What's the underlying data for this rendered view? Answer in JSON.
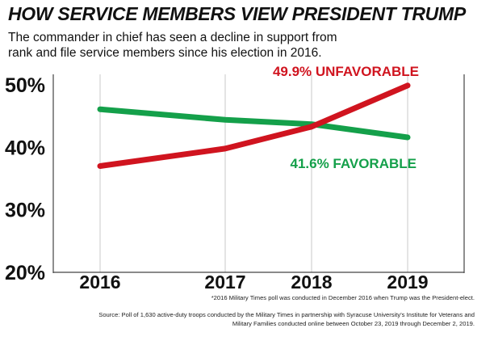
{
  "header": {
    "title": "HOW SERVICE MEMBERS VIEW PRESIDENT TRUMP",
    "subtitle": "The commander in chief has seen a decline in support from rank and file service members since his election in 2016."
  },
  "chart_data": {
    "type": "line",
    "categories": [
      "2016",
      "2017",
      "2018",
      "2019"
    ],
    "y_ticks": [
      "50%",
      "40%",
      "30%",
      "20%"
    ],
    "ylim": [
      20,
      50
    ],
    "grid": "vertical",
    "series": [
      {
        "name": "UNFAVORABLE",
        "label": "49.9% UNFAVORABLE",
        "color": "#d0141f",
        "values": [
          37.0,
          39.8,
          43.3,
          49.9
        ]
      },
      {
        "name": "FAVORABLE",
        "label": "41.6% FAVORABLE",
        "color": "#14a04a",
        "values": [
          46.1,
          44.4,
          43.7,
          41.6
        ]
      }
    ]
  },
  "notes": {
    "footnote": "*2016 Military Times poll was conducted in December 2016 when Trump was the President-elect.",
    "source": "Source: Poll of 1,630 active-duty troops conducted by the Military Times in partnership with Syracuse University's Institute for Veterans and Military Families conducted online between October 23, 2019 through December 2, 2019."
  }
}
